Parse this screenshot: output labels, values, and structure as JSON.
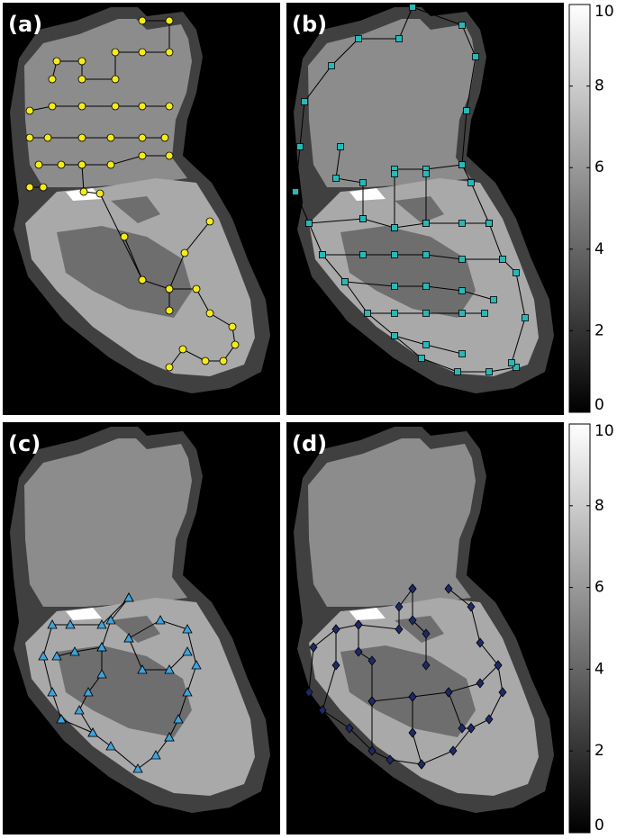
{
  "panels": [
    {
      "label": "(a)"
    },
    {
      "label": "(b)"
    },
    {
      "label": "(c)"
    },
    {
      "label": "(d)"
    }
  ],
  "colorbar": {
    "zlim": [
      0,
      10
    ],
    "ticks": [
      0,
      2,
      4,
      6,
      8,
      10
    ]
  }
}
